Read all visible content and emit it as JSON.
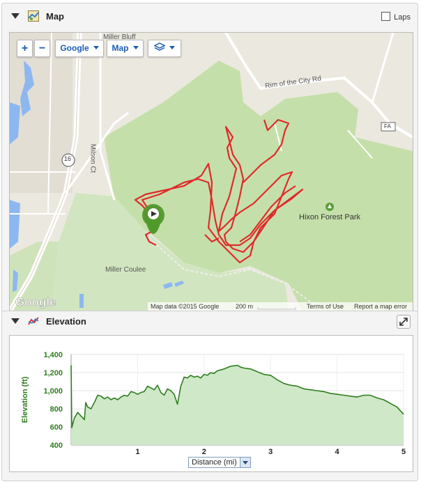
{
  "map_panel": {
    "title": "Map",
    "laps_label": "Laps",
    "controls": {
      "zoom_in": "+",
      "zoom_out": "−",
      "provider": "Google",
      "map_type": "Map"
    },
    "labels": {
      "miller_bluff": "Miller Bluff",
      "rim_road": "Rim of the City Rd",
      "milson_ct": "Milson Ct",
      "route_16": "16",
      "fa": "FA",
      "hixon": "Hixon Forest Park",
      "miller_coulee": "Miller Coulee"
    },
    "attribution": {
      "map_data": "Map data ©2015 Google",
      "scale": "200 m",
      "terms": "Terms of Use",
      "report": "Report a map error",
      "logo": "Google"
    }
  },
  "elevation_panel": {
    "title": "Elevation",
    "x_selector": "Distance (mi)"
  },
  "chart_data": {
    "type": "area",
    "title": "",
    "ylabel": "Elevation (ft)",
    "xlabel": "Distance (mi)",
    "ylim": [
      400,
      1400
    ],
    "xlim": [
      0,
      5
    ],
    "yticks": [
      "400",
      "600",
      "800",
      "1,000",
      "1,200",
      "1,400"
    ],
    "xticks": [
      "1",
      "2",
      "3",
      "4",
      "5"
    ],
    "grid": true,
    "series": [
      {
        "color": "#2e7d1e",
        "x": [
          0,
          0.01,
          0.02,
          0.05,
          0.1,
          0.15,
          0.2,
          0.22,
          0.25,
          0.3,
          0.35,
          0.4,
          0.45,
          0.5,
          0.55,
          0.6,
          0.65,
          0.7,
          0.75,
          0.8,
          0.85,
          0.9,
          0.95,
          1.0,
          1.05,
          1.1,
          1.15,
          1.2,
          1.25,
          1.3,
          1.35,
          1.4,
          1.45,
          1.5,
          1.55,
          1.6,
          1.65,
          1.7,
          1.75,
          1.8,
          1.85,
          1.9,
          1.95,
          2.0,
          2.05,
          2.1,
          2.15,
          2.2,
          2.3,
          2.4,
          2.5,
          2.55,
          2.6,
          2.7,
          2.8,
          2.9,
          3.0,
          3.1,
          3.2,
          3.3,
          3.4,
          3.5,
          3.6,
          3.7,
          3.8,
          3.9,
          4.0,
          4.1,
          4.2,
          4.3,
          4.4,
          4.5,
          4.6,
          4.7,
          4.8,
          4.9,
          5.0
        ],
        "y": [
          1280,
          590,
          620,
          700,
          760,
          720,
          680,
          870,
          820,
          800,
          870,
          950,
          940,
          910,
          930,
          900,
          920,
          900,
          930,
          950,
          940,
          990,
          980,
          960,
          980,
          990,
          1050,
          1030,
          1010,
          1060,
          980,
          950,
          1020,
          1000,
          960,
          850,
          1050,
          1150,
          1140,
          1170,
          1150,
          1160,
          1140,
          1180,
          1170,
          1200,
          1190,
          1220,
          1240,
          1270,
          1280,
          1260,
          1250,
          1240,
          1210,
          1180,
          1170,
          1120,
          1080,
          1060,
          1050,
          1020,
          1010,
          1000,
          990,
          970,
          960,
          950,
          940,
          930,
          950,
          950,
          920,
          900,
          860,
          820,
          740
        ]
      }
    ]
  }
}
